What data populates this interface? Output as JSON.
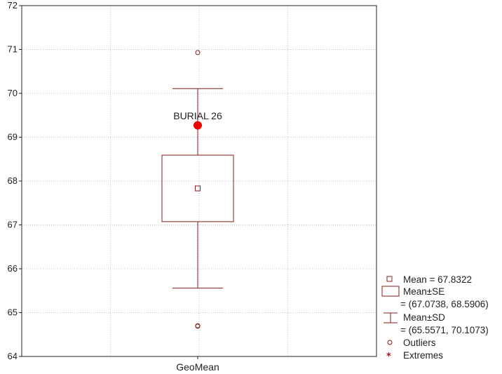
{
  "chart_data": {
    "type": "box",
    "xlabel": "GeoMean",
    "ylim": [
      64,
      72
    ],
    "yticks": [
      "64",
      "65",
      "66",
      "67",
      "68",
      "69",
      "70",
      "71",
      "72"
    ],
    "grid": true,
    "mean": 67.8322,
    "se": [
      67.0738,
      68.5906
    ],
    "sd": [
      65.5571,
      70.1073
    ],
    "outliers": [
      70.93,
      64.7,
      64.69
    ],
    "highlight": {
      "label": "BURIAL 26",
      "value": 69.27
    },
    "legend_position": "bottom-right",
    "legend": {
      "mean": "Mean = 67.8322",
      "se_title": "Mean±SE",
      "se_range": "= (67.0738, 68.5906)",
      "sd_title": "Mean±SD",
      "sd_range": "= (65.5571, 70.1073)",
      "outliers": "Outliers",
      "extremes": "Extremes"
    },
    "colors": {
      "series": "#8b1a1a",
      "highlight": "#ee0000",
      "grid": "#c0c0c0"
    }
  }
}
